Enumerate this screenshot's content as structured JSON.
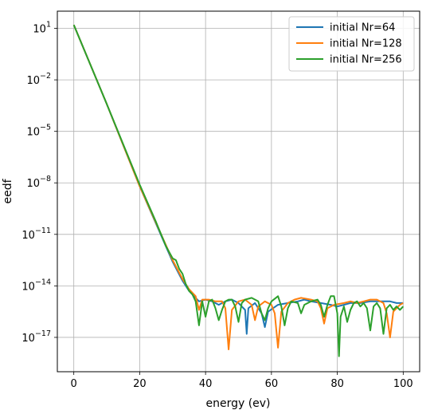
{
  "chart_data": {
    "type": "line",
    "xlabel": "energy (ev)",
    "ylabel": "eedf",
    "log_y": true,
    "grid": true,
    "legend_position": "top-right",
    "xlim": [
      -5,
      105
    ],
    "ylim_exponent": [
      -19,
      2
    ],
    "x_ticks": [
      0,
      20,
      40,
      60,
      80,
      100
    ],
    "y_ticks": [
      {
        "exp": 1,
        "base": "10",
        "power": "1"
      },
      {
        "exp": -2,
        "base": "10",
        "power": "−2"
      },
      {
        "exp": -5,
        "base": "10",
        "power": "−5"
      },
      {
        "exp": -8,
        "base": "10",
        "power": "−8"
      },
      {
        "exp": -11,
        "base": "10",
        "power": "−11"
      },
      {
        "exp": -14,
        "base": "10",
        "power": "−14"
      },
      {
        "exp": -17,
        "base": "10",
        "power": "−17"
      }
    ],
    "series": [
      {
        "name": "initial Nr=64",
        "color": "#1f77b4",
        "points": [
          [
            0,
            1.2
          ],
          [
            10,
            -3.4
          ],
          [
            20,
            -8.2
          ],
          [
            30,
            -12.6
          ],
          [
            33,
            -13.7
          ],
          [
            35,
            -14.3
          ],
          [
            38,
            -14.9
          ],
          [
            40,
            -14.8
          ],
          [
            42,
            -14.9
          ],
          [
            44,
            -15.1
          ],
          [
            46,
            -14.9
          ],
          [
            48,
            -14.8
          ],
          [
            50,
            -15.0
          ],
          [
            52,
            -15.4
          ],
          [
            52.5,
            -16.8
          ],
          [
            53,
            -15.3
          ],
          [
            55,
            -15.0
          ],
          [
            57,
            -15.6
          ],
          [
            58,
            -16.4
          ],
          [
            59,
            -15.5
          ],
          [
            62,
            -15.1
          ],
          [
            65,
            -15.0
          ],
          [
            68,
            -14.9
          ],
          [
            70,
            -14.8
          ],
          [
            72,
            -14.9
          ],
          [
            75,
            -15.0
          ],
          [
            78,
            -15.1
          ],
          [
            80,
            -15.2
          ],
          [
            82,
            -15.1
          ],
          [
            84,
            -15.0
          ],
          [
            87,
            -15.0
          ],
          [
            90,
            -14.9
          ],
          [
            93,
            -14.9
          ],
          [
            96,
            -14.9
          ],
          [
            98,
            -15.0
          ],
          [
            100,
            -15.0
          ]
        ]
      },
      {
        "name": "initial Nr=128",
        "color": "#ff7f0e",
        "points": [
          [
            0,
            1.2
          ],
          [
            10,
            -3.4
          ],
          [
            20,
            -8.2
          ],
          [
            30,
            -12.5
          ],
          [
            33,
            -13.6
          ],
          [
            35,
            -14.2
          ],
          [
            37,
            -14.6
          ],
          [
            38,
            -15.4
          ],
          [
            39,
            -14.8
          ],
          [
            41,
            -14.8
          ],
          [
            43,
            -14.9
          ],
          [
            45,
            -14.9
          ],
          [
            46,
            -15.3
          ],
          [
            47,
            -17.7
          ],
          [
            48,
            -15.4
          ],
          [
            50,
            -14.9
          ],
          [
            52,
            -14.8
          ],
          [
            54,
            -15.1
          ],
          [
            55,
            -16.0
          ],
          [
            56,
            -15.2
          ],
          [
            58,
            -14.9
          ],
          [
            60,
            -15.1
          ],
          [
            61,
            -15.6
          ],
          [
            62,
            -17.6
          ],
          [
            63,
            -15.5
          ],
          [
            65,
            -15.0
          ],
          [
            67,
            -14.8
          ],
          [
            69,
            -14.7
          ],
          [
            72,
            -14.8
          ],
          [
            74,
            -14.9
          ],
          [
            75,
            -15.3
          ],
          [
            76,
            -16.2
          ],
          [
            77,
            -15.3
          ],
          [
            79,
            -15.1
          ],
          [
            82,
            -15.0
          ],
          [
            84,
            -14.9
          ],
          [
            86,
            -15.0
          ],
          [
            88,
            -14.9
          ],
          [
            90,
            -14.8
          ],
          [
            92,
            -14.8
          ],
          [
            94,
            -15.0
          ],
          [
            95,
            -15.6
          ],
          [
            96,
            -17.0
          ],
          [
            97,
            -15.5
          ],
          [
            99,
            -15.1
          ],
          [
            100,
            -15.0
          ]
        ]
      },
      {
        "name": "initial Nr=256",
        "color": "#2ca02c",
        "points": [
          [
            0,
            1.2
          ],
          [
            10,
            -3.4
          ],
          [
            20,
            -8.1
          ],
          [
            25,
            -10.3
          ],
          [
            28,
            -11.7
          ],
          [
            30,
            -12.4
          ],
          [
            31,
            -12.5
          ],
          [
            32,
            -13.0
          ],
          [
            33,
            -13.3
          ],
          [
            34,
            -13.9
          ],
          [
            35,
            -14.3
          ],
          [
            36,
            -14.5
          ],
          [
            37,
            -14.9
          ],
          [
            38,
            -16.3
          ],
          [
            39,
            -14.9
          ],
          [
            40,
            -15.8
          ],
          [
            41,
            -14.9
          ],
          [
            42,
            -14.8
          ],
          [
            43,
            -15.3
          ],
          [
            44,
            -16.0
          ],
          [
            45,
            -15.4
          ],
          [
            46,
            -14.9
          ],
          [
            47,
            -14.8
          ],
          [
            48,
            -14.8
          ],
          [
            49,
            -15.2
          ],
          [
            50,
            -16.1
          ],
          [
            51,
            -15.0
          ],
          [
            52,
            -14.8
          ],
          [
            54,
            -14.7
          ],
          [
            56,
            -14.9
          ],
          [
            57,
            -15.6
          ],
          [
            58,
            -16.0
          ],
          [
            59,
            -15.3
          ],
          [
            60,
            -14.9
          ],
          [
            62,
            -14.6
          ],
          [
            63,
            -15.2
          ],
          [
            64,
            -16.3
          ],
          [
            65,
            -15.3
          ],
          [
            66,
            -14.9
          ],
          [
            68,
            -15.0
          ],
          [
            69,
            -15.6
          ],
          [
            70,
            -15.1
          ],
          [
            72,
            -14.9
          ],
          [
            74,
            -14.8
          ],
          [
            75,
            -15.1
          ],
          [
            76,
            -15.8
          ],
          [
            77,
            -15.1
          ],
          [
            78,
            -14.6
          ],
          [
            79,
            -14.6
          ],
          [
            80,
            -15.6
          ],
          [
            80.5,
            -18.1
          ],
          [
            81,
            -15.8
          ],
          [
            82,
            -15.2
          ],
          [
            83,
            -16.1
          ],
          [
            84,
            -15.4
          ],
          [
            85,
            -15.0
          ],
          [
            86,
            -14.9
          ],
          [
            87,
            -15.2
          ],
          [
            88,
            -15.0
          ],
          [
            89,
            -15.3
          ],
          [
            90,
            -16.6
          ],
          [
            91,
            -15.2
          ],
          [
            92,
            -15.0
          ],
          [
            93,
            -15.3
          ],
          [
            94,
            -16.8
          ],
          [
            95,
            -15.3
          ],
          [
            96,
            -15.1
          ],
          [
            97,
            -15.4
          ],
          [
            98,
            -15.2
          ],
          [
            99,
            -15.4
          ],
          [
            100,
            -15.2
          ]
        ]
      }
    ]
  }
}
